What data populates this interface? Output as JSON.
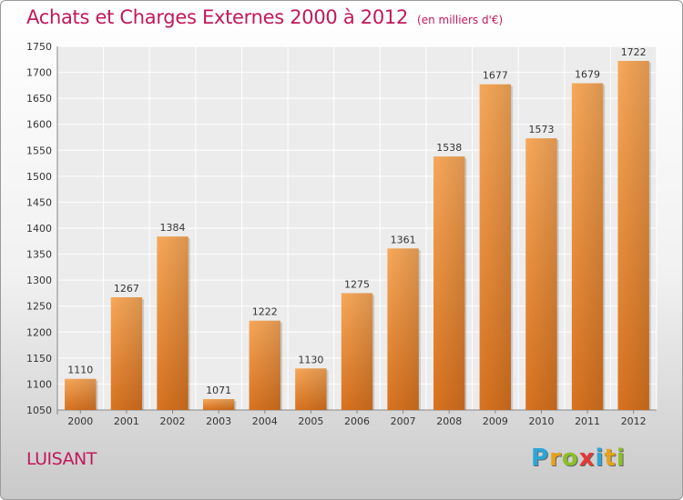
{
  "header": {
    "title": "Achats et Charges Externes 2000 à 2012",
    "subtitle": "(en milliers d'€)"
  },
  "commune": "LUISANT",
  "brand": {
    "letters": [
      "P",
      "r",
      "o",
      "x",
      "i",
      "t",
      "i"
    ],
    "colors": [
      "#2aa7d8",
      "#e8a21a",
      "#8cbf2a",
      "#e53935",
      "#2aa7d8",
      "#e8a21a",
      "#8cbf2a"
    ]
  },
  "chart_data": {
    "type": "bar",
    "categories": [
      "2000",
      "2001",
      "2002",
      "2003",
      "2004",
      "2005",
      "2006",
      "2007",
      "2008",
      "2009",
      "2010",
      "2011",
      "2012"
    ],
    "values": [
      1110,
      1267,
      1384,
      1071,
      1222,
      1130,
      1275,
      1361,
      1538,
      1677,
      1573,
      1679,
      1722
    ],
    "ylim": [
      1050,
      1750
    ],
    "yticks": [
      1050,
      1100,
      1150,
      1200,
      1250,
      1300,
      1350,
      1400,
      1450,
      1500,
      1550,
      1600,
      1650,
      1700,
      1750
    ],
    "grid": true,
    "bar_color": "#f0923c",
    "data_labels": true
  }
}
